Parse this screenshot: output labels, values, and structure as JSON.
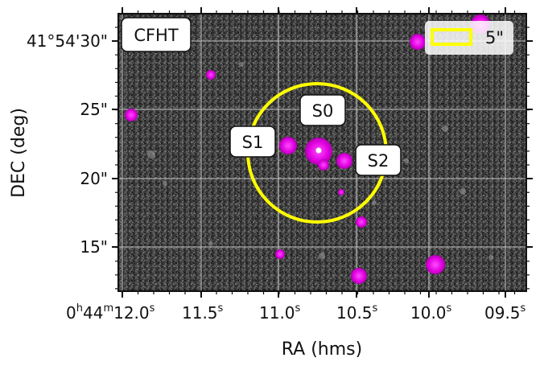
{
  "instrument_label": "CFHT",
  "scale_bar_label": "5\"",
  "x_axis": {
    "label": "RA (hms)",
    "ticks": [
      {
        "parts": [
          "0",
          "h",
          "44",
          "m",
          "12.0",
          "s"
        ]
      },
      {
        "parts": [
          "11.5",
          "s"
        ]
      },
      {
        "parts": [
          "11.0",
          "s"
        ]
      },
      {
        "parts": [
          "10.5",
          "s"
        ]
      },
      {
        "parts": [
          "10.0",
          "s"
        ]
      },
      {
        "parts": [
          "09.5",
          "s"
        ]
      }
    ]
  },
  "y_axis": {
    "label": "DEC (deg)",
    "ticks": [
      "41°54'30\"",
      "25\"",
      "20\"",
      "15\""
    ]
  },
  "sources": [
    {
      "id": "S0",
      "label": "S0"
    },
    {
      "id": "S1",
      "label": "S1"
    },
    {
      "id": "S2",
      "label": "S2"
    }
  ],
  "colors": {
    "aperture": "#ffff00",
    "source_marker": "#e000e0",
    "background": "#3a3a3a",
    "grid": "#bdbdbd"
  }
}
